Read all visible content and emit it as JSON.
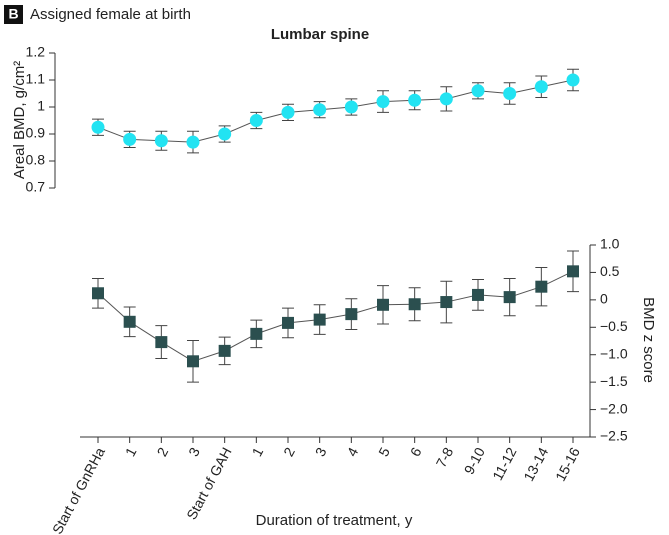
{
  "panel_label": "B",
  "panel_title": "Assigned female at birth",
  "chart_data": [
    {
      "type": "line",
      "title": "Lumbar spine",
      "ylabel": "Areal BMD, g/cm²",
      "ylim": [
        0.7,
        1.2
      ],
      "yticks": [
        0.7,
        0.8,
        0.9,
        1.0,
        1.1,
        1.2
      ],
      "series": [
        {
          "color": "#22e3f2",
          "marker": "circle",
          "values": [
            0.925,
            0.88,
            0.875,
            0.87,
            0.9,
            0.95,
            0.98,
            0.99,
            1.0,
            1.02,
            1.025,
            1.03,
            1.06,
            1.05,
            1.075,
            1.1
          ],
          "errors": [
            0.03,
            0.03,
            0.035,
            0.04,
            0.03,
            0.03,
            0.03,
            0.03,
            0.03,
            0.04,
            0.035,
            0.045,
            0.03,
            0.04,
            0.04,
            0.04
          ]
        }
      ]
    },
    {
      "type": "line",
      "xlabel": "Duration of treatment, y",
      "y2label": "BMD z score",
      "categories": [
        "Start of GnRHa",
        "1",
        "2",
        "3",
        "Start of GAH",
        "1",
        "2",
        "3",
        "4",
        "5",
        "6",
        "7-8",
        "9-10",
        "11-12",
        "13-14",
        "15-16"
      ],
      "y2lim": [
        -2.5,
        1.0
      ],
      "y2ticks": [
        {
          "value": 1.0,
          "label": "1.0"
        },
        {
          "value": 0.5,
          "label": "0.5"
        },
        0,
        {
          "value": -0.5,
          "label": "−0.5"
        },
        {
          "value": -1.0,
          "label": "−1.0"
        },
        {
          "value": -1.5,
          "label": "−1.5"
        },
        {
          "value": -2.0,
          "label": "−2.0"
        },
        {
          "value": -2.5,
          "label": "−2.5"
        }
      ],
      "series": [
        {
          "axis": "y2",
          "color": "#2b4f4f",
          "marker": "square",
          "values": [
            0.12,
            -0.4,
            -0.77,
            -1.12,
            -0.93,
            -0.62,
            -0.42,
            -0.36,
            -0.26,
            -0.09,
            -0.08,
            -0.04,
            0.09,
            0.05,
            0.24,
            0.52
          ],
          "errors": [
            0.27,
            0.27,
            0.3,
            0.38,
            0.25,
            0.25,
            0.27,
            0.27,
            0.28,
            0.35,
            0.3,
            0.38,
            0.28,
            0.34,
            0.35,
            0.37
          ]
        }
      ]
    }
  ]
}
